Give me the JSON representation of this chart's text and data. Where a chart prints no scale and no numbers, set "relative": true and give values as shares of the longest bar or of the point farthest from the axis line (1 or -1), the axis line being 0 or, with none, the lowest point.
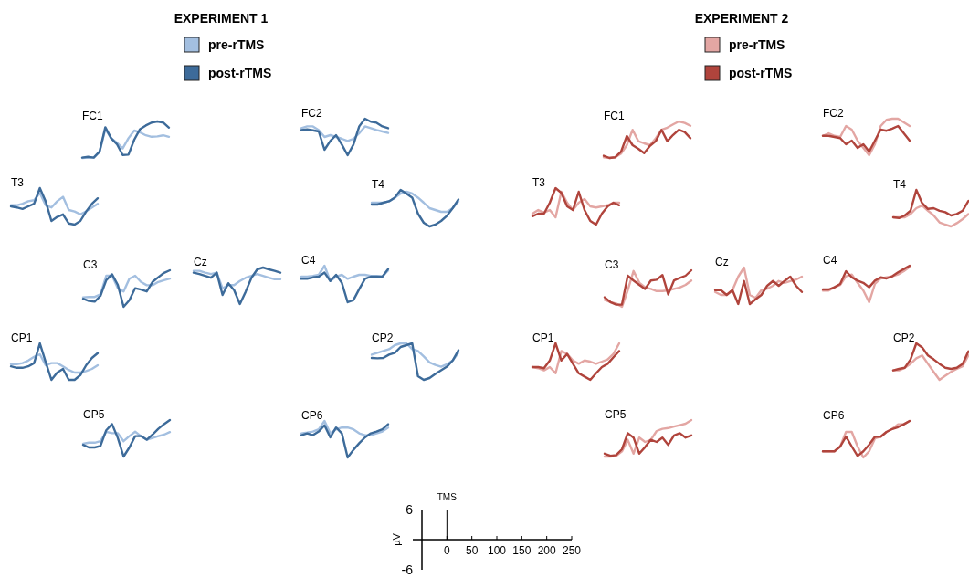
{
  "chart_data": [
    {
      "type": "line",
      "title": "FC1",
      "legend_title": "EXPERIMENT 1",
      "legend": "top",
      "relative": true,
      "categories": [
        null,
        null,
        null,
        null,
        null,
        null,
        null,
        null,
        null,
        null,
        null,
        null,
        null,
        null,
        null,
        null
      ],
      "series": [
        {
          "name": "pre-rTMS",
          "color": "#a3bfe0",
          "values": [
            0,
            0.01,
            0.01,
            0.17,
            0.79,
            0.54,
            0.42,
            0.26,
            0.54,
            0.75,
            0.7,
            0.62,
            0.58,
            0.59,
            0.62,
            0.58
          ]
        },
        {
          "name": "post-rTMS",
          "color": "#3d6b9a",
          "values": [
            0.01,
            0.03,
            0.01,
            0.17,
            0.84,
            0.54,
            0.38,
            0.08,
            0.09,
            0.5,
            0.79,
            0.89,
            0.97,
            1,
            0.97,
            0.83
          ]
        }
      ]
    },
    {
      "type": "line",
      "title": "FC2",
      "relative": true,
      "categories": [
        null,
        null,
        null,
        null,
        null,
        null,
        null,
        null,
        null,
        null,
        null,
        null,
        null,
        null,
        null,
        null
      ],
      "series": [
        {
          "color": "#a3bfe0",
          "values": [
            0.74,
            0.79,
            0.79,
            0.69,
            0.5,
            0.55,
            0.5,
            0.45,
            0.39,
            0.45,
            0.6,
            0.79,
            0.74,
            0.69,
            0.65,
            0.61
          ]
        },
        {
          "color": "#3d6b9a",
          "values": [
            0.69,
            0.71,
            0.68,
            0.65,
            0.15,
            0.39,
            0.55,
            0.29,
            0,
            0.29,
            0.79,
            1,
            0.92,
            0.89,
            0.79,
            0.74
          ]
        }
      ]
    },
    {
      "type": "line",
      "title": "T3",
      "relative": true,
      "categories": [
        null,
        null,
        null,
        null,
        null,
        null,
        null,
        null,
        null,
        null,
        null,
        null,
        null,
        null,
        null,
        null
      ],
      "series": [
        {
          "color": "#a3bfe0",
          "values": [
            0.53,
            0.53,
            0.57,
            0.64,
            0.67,
            0.86,
            0.53,
            0.47,
            0.64,
            0.76,
            0.4,
            0.36,
            0.28,
            0.36,
            0.47,
            0.57
          ]
        },
        {
          "color": "#3d6b9a",
          "values": [
            0.5,
            0.47,
            0.43,
            0.5,
            0.57,
            1,
            0.64,
            0.1,
            0.21,
            0.28,
            0.03,
            0,
            0.1,
            0.36,
            0.57,
            0.72
          ]
        }
      ]
    },
    {
      "type": "line",
      "title": "T4",
      "relative": true,
      "categories": [
        null,
        null,
        null,
        null,
        null,
        null,
        null,
        null,
        null,
        null,
        null,
        null,
        null,
        null,
        null,
        null
      ],
      "series": [
        {
          "color": "#a3bfe0",
          "values": [
            0.65,
            0.65,
            0.65,
            0.69,
            0.79,
            0.9,
            0.95,
            0.9,
            0.79,
            0.65,
            0.5,
            0.45,
            0.4,
            0.4,
            0.5,
            0.69
          ]
        },
        {
          "color": "#3d6b9a",
          "values": [
            0.6,
            0.6,
            0.65,
            0.69,
            0.79,
            1,
            0.9,
            0.79,
            0.35,
            0.1,
            0,
            0.05,
            0.15,
            0.29,
            0.5,
            0.74
          ]
        }
      ]
    },
    {
      "type": "line",
      "title": "C3",
      "relative": true,
      "categories": [
        null,
        null,
        null,
        null,
        null,
        null,
        null,
        null,
        null,
        null,
        null,
        null,
        null,
        null,
        null,
        null
      ],
      "series": [
        {
          "color": "#a3bfe0",
          "values": [
            0.26,
            0.27,
            0.27,
            0.34,
            0.85,
            0.85,
            0.51,
            0.42,
            0.77,
            0.85,
            0.68,
            0.59,
            0.59,
            0.68,
            0.73,
            0.77
          ]
        },
        {
          "color": "#3d6b9a",
          "values": [
            0.22,
            0.16,
            0.14,
            0.3,
            0.73,
            0.89,
            0.6,
            0,
            0.18,
            0.51,
            0.47,
            0.42,
            0.68,
            0.81,
            0.93,
            1
          ]
        }
      ]
    },
    {
      "type": "line",
      "title": "Cz",
      "relative": true,
      "categories": [
        null,
        null,
        null,
        null,
        null,
        null,
        null,
        null,
        null,
        null,
        null,
        null,
        null,
        null,
        null,
        null
      ],
      "series": [
        {
          "color": "#a3bfe0",
          "values": [
            0.91,
            0.91,
            0.86,
            0.82,
            0.86,
            0.43,
            0.52,
            0.52,
            0.63,
            0.72,
            0.77,
            0.82,
            0.77,
            0.72,
            0.68,
            0.68
          ]
        },
        {
          "color": "#3d6b9a",
          "values": [
            0.86,
            0.82,
            0.77,
            0.72,
            0.86,
            0.25,
            0.57,
            0.38,
            0,
            0.34,
            0.72,
            0.95,
            1,
            0.95,
            0.91,
            0.86
          ]
        }
      ]
    },
    {
      "type": "line",
      "title": "C4",
      "relative": true,
      "categories": [
        null,
        null,
        null,
        null,
        null,
        null,
        null,
        null,
        null,
        null,
        null,
        null,
        null,
        null,
        null,
        null
      ],
      "series": [
        {
          "color": "#a3bfe0",
          "values": [
            0.7,
            0.7,
            0.72,
            0.75,
            1,
            0.58,
            0.7,
            0.75,
            0.64,
            0.7,
            0.75,
            0.75,
            0.72,
            0.72,
            0.7,
            0.87
          ]
        },
        {
          "color": "#3d6b9a",
          "values": [
            0.64,
            0.64,
            0.68,
            0.7,
            0.81,
            0.58,
            0.75,
            0.53,
            0,
            0.06,
            0.36,
            0.64,
            0.7,
            0.7,
            0.7,
            0.91
          ]
        }
      ]
    },
    {
      "type": "line",
      "title": "CP1",
      "relative": true,
      "categories": [
        null,
        null,
        null,
        null,
        null,
        null,
        null,
        null,
        null,
        null,
        null,
        null,
        null,
        null,
        null,
        null
      ],
      "series": [
        {
          "color": "#a3bfe0",
          "values": [
            0.43,
            0.43,
            0.46,
            0.53,
            0.63,
            0.7,
            0.4,
            0.46,
            0.46,
            0.37,
            0.27,
            0.2,
            0.2,
            0.24,
            0.3,
            0.4
          ]
        },
        {
          "color": "#3d6b9a",
          "values": [
            0.37,
            0.33,
            0.33,
            0.37,
            0.46,
            1,
            0.49,
            0,
            0.2,
            0.3,
            0,
            0,
            0.13,
            0.4,
            0.6,
            0.73
          ]
        }
      ]
    },
    {
      "type": "line",
      "title": "CP2",
      "relative": true,
      "categories": [
        null,
        null,
        null,
        null,
        null,
        null,
        null,
        null,
        null,
        null,
        null,
        null,
        null,
        null,
        null,
        null
      ],
      "series": [
        {
          "color": "#a3bfe0",
          "values": [
            0.69,
            0.74,
            0.79,
            0.84,
            0.95,
            1,
            1,
            0.84,
            0.79,
            0.64,
            0.48,
            0.41,
            0.36,
            0.43,
            0.53,
            0.74
          ]
        },
        {
          "color": "#3d6b9a",
          "values": [
            0.6,
            0.59,
            0.6,
            0.69,
            0.74,
            0.9,
            0.95,
            1,
            0.1,
            0,
            0.05,
            0.16,
            0.26,
            0.36,
            0.53,
            0.81
          ]
        }
      ]
    },
    {
      "type": "line",
      "title": "CP5",
      "relative": true,
      "categories": [
        null,
        null,
        null,
        null,
        null,
        null,
        null,
        null,
        null,
        null,
        null,
        null,
        null,
        null,
        null,
        null
      ],
      "series": [
        {
          "color": "#a3bfe0",
          "values": [
            0.35,
            0.38,
            0.38,
            0.42,
            0.68,
            0.64,
            0.64,
            0.42,
            0.56,
            0.68,
            0.56,
            0.46,
            0.51,
            0.56,
            0.6,
            0.67
          ]
        },
        {
          "color": "#3d6b9a",
          "values": [
            0.32,
            0.25,
            0.25,
            0.29,
            0.72,
            0.89,
            0.51,
            0,
            0.25,
            0.56,
            0.56,
            0.46,
            0.6,
            0.76,
            0.89,
            1
          ]
        }
      ]
    },
    {
      "type": "line",
      "title": "CP6",
      "relative": true,
      "categories": [
        null,
        null,
        null,
        null,
        null,
        null,
        null,
        null,
        null,
        null,
        null,
        null,
        null,
        null,
        null,
        null
      ],
      "series": [
        {
          "color": "#a3bfe0",
          "values": [
            0.66,
            0.68,
            0.71,
            0.77,
            1,
            0.66,
            0.77,
            0.82,
            0.82,
            0.77,
            0.66,
            0.61,
            0.61,
            0.66,
            0.71,
            0.82
          ]
        },
        {
          "color": "#3d6b9a",
          "values": [
            0.61,
            0.66,
            0.61,
            0.71,
            0.88,
            0.55,
            0.82,
            0.66,
            0,
            0.21,
            0.39,
            0.55,
            0.66,
            0.71,
            0.77,
            0.91
          ]
        }
      ]
    },
    {
      "type": "line",
      "title": "FC1",
      "legend_title": "EXPERIMENT 2",
      "legend": "top",
      "relative": true,
      "categories": [
        null,
        null,
        null,
        null,
        null,
        null,
        null,
        null,
        null,
        null,
        null,
        null,
        null,
        null,
        null,
        null
      ],
      "series": [
        {
          "name": "pre-rTMS",
          "color": "#e3a6a3",
          "values": [
            0.02,
            0,
            0.02,
            0.12,
            0.35,
            0.77,
            0.46,
            0.4,
            0.35,
            0.54,
            0.77,
            0.83,
            0.92,
            1,
            0.96,
            0.88
          ]
        },
        {
          "name": "post-rTMS",
          "color": "#b0443c",
          "values": [
            0.06,
            0,
            0.02,
            0.17,
            0.6,
            0.35,
            0.25,
            0.13,
            0.33,
            0.46,
            0.77,
            0.46,
            0.63,
            0.77,
            0.71,
            0.54
          ]
        }
      ]
    },
    {
      "type": "line",
      "title": "FC2",
      "relative": true,
      "categories": [
        null,
        null,
        null,
        null,
        null,
        null,
        null,
        null,
        null,
        null,
        null,
        null,
        null,
        null,
        null,
        null
      ],
      "series": [
        {
          "color": "#e3a6a3",
          "values": [
            0.53,
            0.6,
            0.53,
            0.5,
            0.8,
            0.7,
            0.4,
            0.2,
            0,
            0.3,
            0.8,
            0.97,
            1,
            1,
            0.9,
            0.8
          ]
        },
        {
          "color": "#b0443c",
          "values": [
            0.53,
            0.53,
            0.5,
            0.47,
            0.3,
            0.4,
            0.2,
            0.3,
            0.1,
            0.4,
            0.7,
            0.67,
            0.73,
            0.8,
            0.6,
            0.4
          ]
        }
      ]
    },
    {
      "type": "line",
      "title": "T3",
      "relative": true,
      "categories": [
        null,
        null,
        null,
        null,
        null,
        null,
        null,
        null,
        null,
        null,
        null,
        null,
        null,
        null,
        null,
        null
      ],
      "series": [
        {
          "color": "#e3a6a3",
          "values": [
            0.3,
            0.4,
            0.33,
            0.4,
            0.2,
            0.9,
            0.6,
            0.4,
            0.6,
            0.7,
            0.5,
            0.47,
            0.5,
            0.53,
            0.6,
            0.6
          ]
        },
        {
          "color": "#b0443c",
          "values": [
            0.23,
            0.3,
            0.3,
            0.6,
            1,
            0.87,
            0.5,
            0.4,
            0.9,
            0.4,
            0.1,
            0,
            0.3,
            0.5,
            0.6,
            0.53
          ]
        }
      ]
    },
    {
      "type": "line",
      "title": "T4",
      "relative": true,
      "categories": [
        null,
        null,
        null,
        null,
        null,
        null,
        null,
        null,
        null,
        null,
        null,
        null,
        null,
        null,
        null,
        null
      ],
      "series": [
        {
          "color": "#e3a6a3",
          "values": [
            0.25,
            0.25,
            0.25,
            0.34,
            0.5,
            0.57,
            0.43,
            0.3,
            0.11,
            0.05,
            0,
            0.09,
            0.2,
            0.34,
            null,
            null
          ]
        },
        {
          "color": "#b0443c",
          "values": [
            0.25,
            0.23,
            0.3,
            0.43,
            1,
            0.64,
            0.48,
            0.5,
            0.43,
            0.39,
            0.3,
            0.34,
            0.43,
            0.7,
            null,
            null
          ]
        }
      ]
    },
    {
      "type": "line",
      "title": "C3",
      "relative": true,
      "categories": [
        null,
        null,
        null,
        null,
        null,
        null,
        null,
        null,
        null,
        null,
        null,
        null,
        null,
        null,
        null,
        null
      ],
      "series": [
        {
          "color": "#e3a6a3",
          "values": [
            0.19,
            0.13,
            0.09,
            0,
            0.45,
            0.98,
            0.66,
            0.53,
            0.49,
            0.43,
            0.43,
            0.45,
            0.49,
            0.53,
            0.6,
            0.72
          ]
        },
        {
          "color": "#b0443c",
          "values": [
            0.26,
            0.13,
            0.06,
            0.06,
            0.85,
            0.72,
            0.6,
            0.49,
            0.72,
            0.74,
            0.87,
            0.34,
            0.72,
            0.79,
            0.85,
            1
          ]
        }
      ]
    },
    {
      "type": "line",
      "title": "Cz",
      "relative": true,
      "categories": [
        null,
        null,
        null,
        null,
        null,
        null,
        null,
        null,
        null,
        null,
        null,
        null,
        null,
        null,
        null,
        null
      ],
      "series": [
        {
          "color": "#e3a6a3",
          "values": [
            0.33,
            0.25,
            0.25,
            0.38,
            0.75,
            1,
            0.25,
            0.17,
            0.38,
            0.42,
            0.5,
            0.63,
            0.58,
            0.63,
            0.67,
            0.75
          ]
        },
        {
          "color": "#b0443c",
          "values": [
            0.38,
            0.38,
            0.25,
            0.38,
            0,
            0.63,
            0,
            0.13,
            0.25,
            0.5,
            0.63,
            0.5,
            0.63,
            0.75,
            0.5,
            0.33
          ]
        }
      ]
    },
    {
      "type": "line",
      "title": "C4",
      "relative": true,
      "categories": [
        null,
        null,
        null,
        null,
        null,
        null,
        null,
        null,
        null,
        null,
        null,
        null,
        null,
        null,
        null,
        null
      ],
      "series": [
        {
          "color": "#e3a6a3",
          "values": [
            0.32,
            0.32,
            0.41,
            0.47,
            0.71,
            0.76,
            0.53,
            0.32,
            0,
            0.5,
            0.65,
            0.68,
            0.71,
            0.76,
            0.85,
            0.97
          ]
        },
        {
          "color": "#b0443c",
          "values": [
            0.35,
            0.35,
            0.41,
            0.5,
            0.85,
            0.68,
            0.59,
            0.53,
            0.41,
            0.59,
            0.68,
            0.65,
            0.71,
            0.82,
            0.91,
            1
          ]
        }
      ]
    },
    {
      "type": "line",
      "title": "CP1",
      "relative": true,
      "categories": [
        null,
        null,
        null,
        null,
        null,
        null,
        null,
        null,
        null,
        null,
        null,
        null,
        null,
        null,
        null,
        null
      ],
      "series": [
        {
          "color": "#e3a6a3",
          "values": [
            0.35,
            0.32,
            0.26,
            0.35,
            0.18,
            0.79,
            0.71,
            0.53,
            0.44,
            0.53,
            0.5,
            0.44,
            0.5,
            0.56,
            0.71,
            1
          ]
        },
        {
          "color": "#b0443c",
          "values": [
            0.35,
            0.35,
            0.32,
            0.53,
            1,
            0.53,
            0.71,
            0.44,
            0.18,
            0.09,
            0,
            0.18,
            0.35,
            0.44,
            0.62,
            0.79
          ]
        }
      ]
    },
    {
      "type": "line",
      "title": "CP2",
      "relative": true,
      "categories": [
        null,
        null,
        null,
        null,
        null,
        null,
        null,
        null,
        null,
        null,
        null,
        null,
        null,
        null,
        null,
        null
      ],
      "series": [
        {
          "color": "#e3a6a3",
          "values": [
            0.26,
            0.26,
            0.33,
            0.44,
            0.59,
            0.67,
            0.44,
            0.22,
            0,
            0.11,
            0.22,
            0.3,
            0.37,
            0.67,
            null,
            null
          ]
        },
        {
          "color": "#b0443c",
          "values": [
            0.26,
            0.3,
            0.33,
            0.56,
            1,
            0.89,
            0.67,
            0.56,
            0.44,
            0.33,
            0.3,
            0.33,
            0.44,
            0.78,
            null,
            null
          ]
        }
      ]
    },
    {
      "type": "line",
      "title": "CP5",
      "relative": true,
      "categories": [
        null,
        null,
        null,
        null,
        null,
        null,
        null,
        null,
        null,
        null,
        null,
        null,
        null,
        null,
        null,
        null
      ],
      "series": [
        {
          "color": "#e3a6a3",
          "values": [
            0,
            0,
            0.02,
            0.14,
            0.46,
            0.08,
            0.52,
            0.4,
            0.46,
            0.7,
            0.76,
            0.78,
            0.82,
            0.86,
            0.9,
            1
          ]
        },
        {
          "color": "#b0443c",
          "values": [
            0.08,
            0.02,
            0.04,
            0.2,
            0.64,
            0.52,
            0.08,
            0.26,
            0.46,
            0.4,
            0.52,
            0.32,
            0.58,
            0.64,
            0.52,
            0.58
          ]
        }
      ]
    },
    {
      "type": "line",
      "title": "CP6",
      "relative": true,
      "categories": [
        null,
        null,
        null,
        null,
        null,
        null,
        null,
        null,
        null,
        null,
        null,
        null,
        null,
        null,
        null,
        null
      ],
      "series": [
        {
          "color": "#e3a6a3",
          "values": [
            0.17,
            0.17,
            0.17,
            0.3,
            0.7,
            0.7,
            0.3,
            0,
            0.17,
            0.52,
            0.57,
            0.7,
            0.78,
            0.91,
            0.91,
            1
          ]
        },
        {
          "color": "#b0443c",
          "values": [
            0.17,
            0.17,
            0.17,
            0.3,
            0.57,
            0.3,
            0.04,
            0.17,
            0.35,
            0.57,
            0.57,
            0.7,
            0.78,
            0.83,
            0.91,
            1
          ]
        }
      ]
    },
    {
      "type": "line",
      "ylabel": "µV",
      "xlim": [
        -50,
        250
      ],
      "ylim": [
        -6,
        6
      ],
      "xticks": [
        0,
        50,
        100,
        150,
        200,
        250
      ],
      "yticks": [
        -6,
        6
      ],
      "ref_lines": [
        {
          "axis": "x",
          "value": 0,
          "label": "TMS"
        }
      ]
    }
  ]
}
